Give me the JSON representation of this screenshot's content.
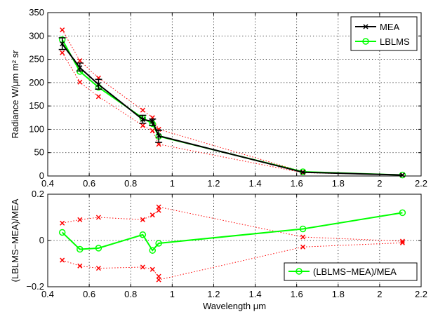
{
  "chart_data": [
    {
      "type": "line",
      "xlabel": "",
      "ylabel": "Radiance W/μm m² sr",
      "xlim": [
        0.4,
        2.2
      ],
      "ylim": [
        0,
        350
      ],
      "xticks": [
        "0.4",
        "0.6",
        "0.8",
        "1",
        "1.2",
        "1.4",
        "1.6",
        "1.8",
        "2",
        "2.2"
      ],
      "yticks": [
        "0",
        "50",
        "100",
        "150",
        "200",
        "250",
        "300",
        "350"
      ],
      "grid": true,
      "legend_position": "top-right",
      "x": [
        0.47,
        0.555,
        0.645,
        0.858,
        0.905,
        0.935,
        1.63,
        2.11
      ],
      "series": [
        {
          "name": "MEA",
          "color": "#000000",
          "marker": "x",
          "values": [
            283,
            232,
            196,
            121,
            117,
            86,
            8,
            2
          ],
          "error_low": [
            271,
            225,
            186,
            113,
            108,
            72,
            8,
            2
          ],
          "error_high": [
            296,
            242,
            207,
            130,
            122,
            98,
            8,
            2
          ]
        },
        {
          "name": "LBLMS",
          "color": "#00ff00",
          "marker": "o",
          "values": [
            292,
            224,
            190,
            124,
            112,
            85,
            9,
            2
          ]
        }
      ],
      "bounds": {
        "color": "#ff0000",
        "marker": "x",
        "upper": [
          313,
          247,
          210,
          141,
          125,
          100,
          9,
          2
        ],
        "lower": [
          264,
          201,
          170,
          108,
          97,
          68,
          7,
          2
        ]
      }
    },
    {
      "type": "line",
      "xlabel": "Wavelength μm",
      "ylabel": "(LBLMS−MEA)/MEA",
      "xlim": [
        0.4,
        2.2
      ],
      "ylim": [
        -0.2,
        0.2
      ],
      "xticks": [
        "0.4",
        "0.6",
        "0.8",
        "1",
        "1.2",
        "1.4",
        "1.6",
        "1.8",
        "2",
        "2.2"
      ],
      "yticks": [
        "−0.2",
        "0",
        "0.2"
      ],
      "ytick_values": [
        -0.2,
        0,
        0.2
      ],
      "grid": true,
      "legend_position": "bottom-right",
      "x": [
        0.47,
        0.555,
        0.645,
        0.858,
        0.905,
        0.935,
        1.63,
        2.11
      ],
      "series": [
        {
          "name": "(LBLMS−MEA)/MEA",
          "color": "#00ff00",
          "marker": "o",
          "values": [
            0.035,
            -0.038,
            -0.033,
            0.025,
            -0.043,
            -0.012,
            0.05,
            0.12
          ]
        }
      ],
      "bounds": {
        "color": "#ff0000",
        "marker": "x",
        "x": [
          0.47,
          0.555,
          0.645,
          0.858,
          0.905,
          0.935,
          0.935,
          1.63,
          2.11
        ],
        "upper": [
          0.075,
          0.09,
          0.1,
          0.09,
          0.11,
          0.13,
          0.145,
          0.015,
          -0.003
        ],
        "lower": [
          -0.085,
          -0.11,
          -0.12,
          -0.115,
          -0.125,
          -0.155,
          -0.17,
          -0.028,
          -0.01
        ]
      }
    }
  ]
}
